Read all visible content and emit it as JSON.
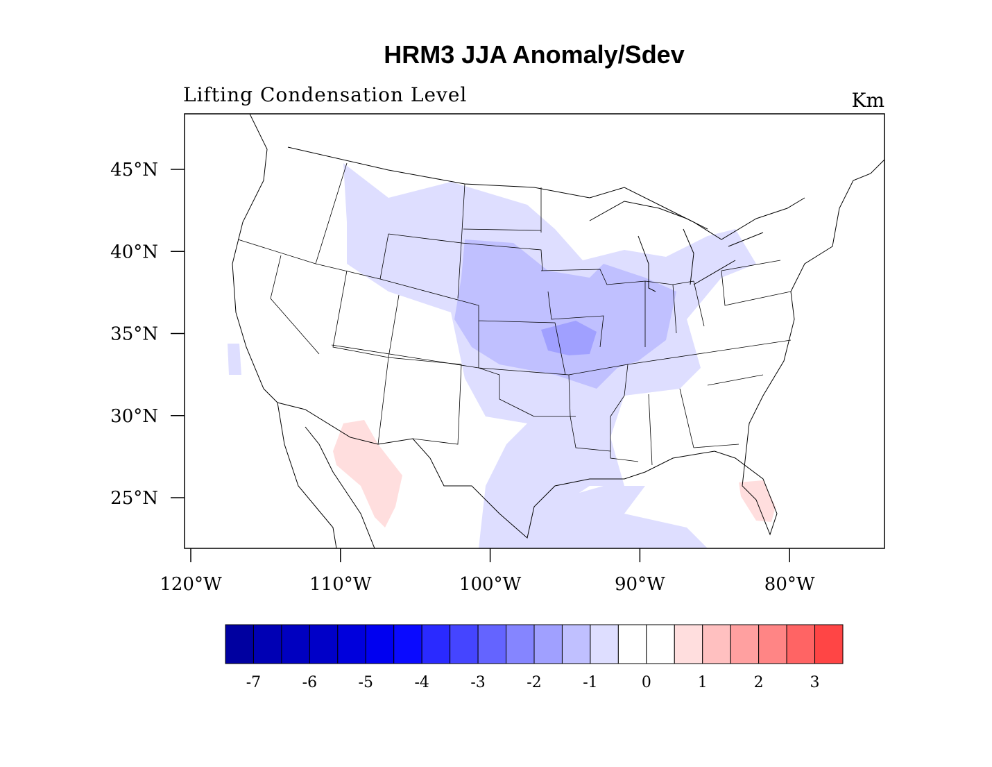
{
  "title": "HRM3 JJA Anomaly/Sdev",
  "left_subtitle": "Lifting Condensation Level",
  "right_subtitle": "Km",
  "map": {
    "lat_labels": [
      "45°N",
      "40°N",
      "35°N",
      "30°N",
      "25°N"
    ],
    "lat_values": [
      45,
      40,
      35,
      30,
      25
    ],
    "lon_labels": [
      "120°W",
      "110°W",
      "100°W",
      "90°W",
      "80°W"
    ],
    "lon_values": [
      -120,
      -110,
      -100,
      -90,
      -80
    ],
    "region": "Contiguous United States",
    "anomaly_regions": [
      {
        "area": "Northern/Central Plains",
        "level": -1
      },
      {
        "area": "Nebraska-Kansas-Missouri-Illinois",
        "level": -1.5
      },
      {
        "area": "Kansas-Missouri core",
        "level": -2
      },
      {
        "area": "Texas/Gulf Coast",
        "level": -1
      },
      {
        "area": "Northern Mexico",
        "level": 1
      },
      {
        "area": "Southern Florida",
        "level": 1
      }
    ]
  },
  "colorbar": {
    "labels": [
      "-7",
      "-6",
      "-5",
      "-4",
      "-3",
      "-2",
      "-1",
      "0",
      "1",
      "2",
      "3"
    ],
    "colors": [
      "#0000a0",
      "#0000b4",
      "#0000c0",
      "#0000c8",
      "#0000dc",
      "#0000f0",
      "#0a0aff",
      "#2a2aff",
      "#4545ff",
      "#6464ff",
      "#8585ff",
      "#a0a0ff",
      "#c0c0ff",
      "#dedeff",
      "#ffffff",
      "#ffffff",
      "#ffdede",
      "#ffc0c0",
      "#ffa0a0",
      "#ff8585",
      "#ff6464",
      "#ff4545"
    ]
  }
}
